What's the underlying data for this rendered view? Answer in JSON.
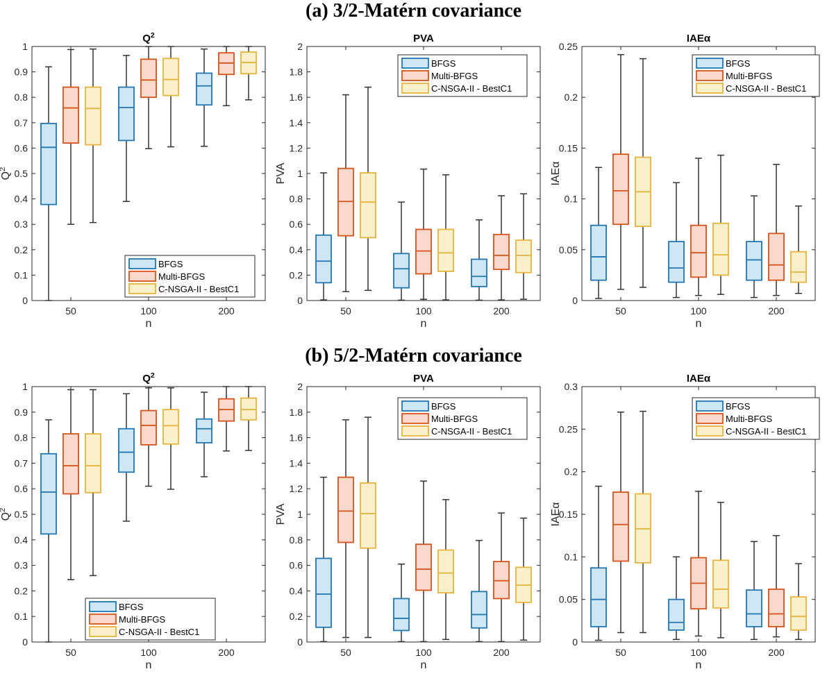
{
  "sections": [
    {
      "title": "(a) 3/2-Matérn covariance"
    },
    {
      "title": "(b) 5/2-Matérn covariance"
    }
  ],
  "colors": {
    "BFGS": {
      "stroke": "#1f77b4",
      "fill": "#cfe6f5"
    },
    "Multi-BFGS": {
      "stroke": "#d95319",
      "fill": "#f9d9cc"
    },
    "C-NSGA-II - BestC1": {
      "stroke": "#e8b43a",
      "fill": "#fbf0cc"
    }
  },
  "chart_data": [
    {
      "type": "box",
      "panel": "a-q2",
      "section": 0,
      "column": 0,
      "title": "Q",
      "title_sup": "2",
      "xlabel": "n",
      "ylabel": "Q",
      "ylabel_sup": "2",
      "ylim": [
        0,
        1
      ],
      "yticks": [
        0,
        0.1,
        0.2,
        0.3,
        0.4,
        0.5,
        0.6,
        0.7,
        0.8,
        0.9,
        1
      ],
      "ytick_labels": [
        "0",
        "0.1",
        "0.2",
        "0.3",
        "0.4",
        "0.5",
        "0.6",
        "0.7",
        "0.8",
        "0.9",
        "1"
      ],
      "categories": [
        "50",
        "100",
        "200"
      ],
      "legend_position": "bottom-right",
      "series": [
        {
          "name": "BFGS",
          "boxes": [
            [
              0,
              0.378,
              0.603,
              0.697,
              0.92
            ],
            [
              0.39,
              0.63,
              0.76,
              0.84,
              0.965
            ],
            [
              0.607,
              0.77,
              0.845,
              0.895,
              0.99
            ]
          ]
        },
        {
          "name": "Multi-BFGS",
          "boxes": [
            [
              0.3,
              0.62,
              0.758,
              0.84,
              0.988
            ],
            [
              0.598,
              0.8,
              0.868,
              0.95,
              1.0
            ],
            [
              0.767,
              0.89,
              0.935,
              0.975,
              1.0
            ]
          ]
        },
        {
          "name": "C-NSGA-II - BestC1",
          "boxes": [
            [
              0.307,
              0.613,
              0.756,
              0.84,
              0.99
            ],
            [
              0.605,
              0.807,
              0.87,
              0.953,
              1.0
            ],
            [
              0.79,
              0.893,
              0.937,
              0.978,
              1.0
            ]
          ]
        }
      ]
    },
    {
      "type": "box",
      "panel": "a-pva",
      "section": 0,
      "column": 1,
      "title": "PVA",
      "xlabel": "n",
      "ylabel": "PVA",
      "ylim": [
        0,
        2
      ],
      "yticks": [
        0,
        0.2,
        0.4,
        0.6,
        0.8,
        1,
        1.2,
        1.4,
        1.6,
        1.8,
        2
      ],
      "ytick_labels": [
        "0",
        "0.2",
        "0.4",
        "0.6",
        "0.8",
        "1",
        "1.2",
        "1.4",
        "1.6",
        "1.8",
        "2"
      ],
      "categories": [
        "50",
        "100",
        "200"
      ],
      "legend_position": "top-right",
      "series": [
        {
          "name": "BFGS",
          "boxes": [
            [
              0.005,
              0.14,
              0.31,
              0.515,
              1.005
            ],
            [
              0.003,
              0.1,
              0.25,
              0.37,
              0.775
            ],
            [
              0.003,
              0.11,
              0.19,
              0.325,
              0.635
            ]
          ]
        },
        {
          "name": "Multi-BFGS",
          "boxes": [
            [
              0.07,
              0.51,
              0.78,
              1.04,
              1.62
            ],
            [
              0.01,
              0.21,
              0.39,
              0.56,
              1.035
            ],
            [
              0.005,
              0.245,
              0.355,
              0.52,
              0.825
            ]
          ]
        },
        {
          "name": "C-NSGA-II - BestC1",
          "boxes": [
            [
              0.08,
              0.495,
              0.775,
              1.005,
              1.68
            ],
            [
              0.005,
              0.23,
              0.375,
              0.56,
              0.99
            ],
            [
              0.01,
              0.22,
              0.355,
              0.475,
              0.84
            ]
          ]
        }
      ]
    },
    {
      "type": "box",
      "panel": "a-iae",
      "section": 0,
      "column": 2,
      "title": "IAEα",
      "xlabel": "n",
      "ylabel": "IAEα",
      "ylim": [
        0,
        0.25
      ],
      "yticks": [
        0,
        0.05,
        0.1,
        0.15,
        0.2,
        0.25
      ],
      "ytick_labels": [
        "0",
        "0.05",
        "0.1",
        "0.15",
        "0.2",
        "0.25"
      ],
      "categories": [
        "50",
        "100",
        "200"
      ],
      "legend_position": "top-right",
      "series": [
        {
          "name": "BFGS",
          "boxes": [
            [
              0.002,
              0.02,
              0.043,
              0.074,
              0.131
            ],
            [
              0.003,
              0.018,
              0.032,
              0.058,
              0.116
            ],
            [
              0.003,
              0.02,
              0.04,
              0.058,
              0.103
            ]
          ]
        },
        {
          "name": "Multi-BFGS",
          "boxes": [
            [
              0.011,
              0.075,
              0.108,
              0.144,
              0.242
            ],
            [
              0.005,
              0.023,
              0.047,
              0.074,
              0.14
            ],
            [
              0.005,
              0.02,
              0.035,
              0.066,
              0.134
            ]
          ]
        },
        {
          "name": "C-NSGA-II - BestC1",
          "boxes": [
            [
              0.013,
              0.073,
              0.107,
              0.141,
              0.238
            ],
            [
              0.006,
              0.025,
              0.045,
              0.076,
              0.143
            ],
            [
              0.007,
              0.018,
              0.028,
              0.048,
              0.093
            ]
          ]
        }
      ]
    },
    {
      "type": "box",
      "panel": "b-q2",
      "section": 1,
      "column": 0,
      "title": "Q",
      "title_sup": "2",
      "xlabel": "n",
      "ylabel": "Q",
      "ylabel_sup": "2",
      "ylim": [
        0,
        1
      ],
      "yticks": [
        0,
        0.1,
        0.2,
        0.3,
        0.4,
        0.5,
        0.6,
        0.7,
        0.8,
        0.9,
        1
      ],
      "ytick_labels": [
        "0",
        "0.1",
        "0.2",
        "0.3",
        "0.4",
        "0.5",
        "0.6",
        "0.7",
        "0.8",
        "0.9",
        "1"
      ],
      "categories": [
        "50",
        "100",
        "200"
      ],
      "legend_position": "bottom-left",
      "series": [
        {
          "name": "BFGS",
          "boxes": [
            [
              0,
              0.423,
              0.587,
              0.737,
              0.87
            ],
            [
              0.473,
              0.665,
              0.743,
              0.835,
              0.972
            ],
            [
              0.647,
              0.78,
              0.835,
              0.873,
              0.978
            ]
          ]
        },
        {
          "name": "Multi-BFGS",
          "boxes": [
            [
              0.244,
              0.58,
              0.69,
              0.815,
              0.988
            ],
            [
              0.61,
              0.772,
              0.848,
              0.906,
              0.995
            ],
            [
              0.748,
              0.865,
              0.91,
              0.952,
              1.0
            ]
          ]
        },
        {
          "name": "C-NSGA-II - BestC1",
          "boxes": [
            [
              0.26,
              0.585,
              0.69,
              0.815,
              0.988
            ],
            [
              0.598,
              0.775,
              0.847,
              0.91,
              0.995
            ],
            [
              0.75,
              0.87,
              0.91,
              0.955,
              1.0
            ]
          ]
        }
      ]
    },
    {
      "type": "box",
      "panel": "b-pva",
      "section": 1,
      "column": 1,
      "title": "PVA",
      "xlabel": "n",
      "ylabel": "PVA",
      "ylim": [
        0,
        2
      ],
      "yticks": [
        0,
        0.2,
        0.4,
        0.6,
        0.8,
        1,
        1.2,
        1.4,
        1.6,
        1.8,
        2
      ],
      "ytick_labels": [
        "0",
        "0.2",
        "0.4",
        "0.6",
        "0.8",
        "1",
        "1.2",
        "1.4",
        "1.6",
        "1.8",
        "2"
      ],
      "categories": [
        "50",
        "100",
        "200"
      ],
      "legend_position": "top-right",
      "series": [
        {
          "name": "BFGS",
          "boxes": [
            [
              0.003,
              0.115,
              0.375,
              0.655,
              1.29
            ],
            [
              0.003,
              0.09,
              0.185,
              0.34,
              0.61
            ],
            [
              0.003,
              0.11,
              0.215,
              0.395,
              0.795
            ]
          ]
        },
        {
          "name": "Multi-BFGS",
          "boxes": [
            [
              0.035,
              0.78,
              1.025,
              1.29,
              1.74
            ],
            [
              0.003,
              0.405,
              0.57,
              0.765,
              1.26
            ],
            [
              0.003,
              0.34,
              0.48,
              0.63,
              1.01
            ]
          ]
        },
        {
          "name": "C-NSGA-II - BestC1",
          "boxes": [
            [
              0.035,
              0.735,
              1.005,
              1.245,
              1.76
            ],
            [
              0.02,
              0.385,
              0.54,
              0.72,
              1.115
            ],
            [
              0.015,
              0.31,
              0.445,
              0.585,
              0.97
            ]
          ]
        }
      ]
    },
    {
      "type": "box",
      "panel": "b-iae",
      "section": 1,
      "column": 2,
      "title": "IAEα",
      "xlabel": "n",
      "ylabel": "IAEα",
      "ylim": [
        0,
        0.3
      ],
      "yticks": [
        0,
        0.05,
        0.1,
        0.15,
        0.2,
        0.25,
        0.3
      ],
      "ytick_labels": [
        "0",
        "0.05",
        "0.1",
        "0.15",
        "0.2",
        "0.25",
        "0.3"
      ],
      "categories": [
        "50",
        "100",
        "200"
      ],
      "legend_position": "top-right",
      "series": [
        {
          "name": "BFGS",
          "boxes": [
            [
              0.002,
              0.018,
              0.05,
              0.087,
              0.183
            ],
            [
              0.003,
              0.014,
              0.023,
              0.05,
              0.1
            ],
            [
              0.003,
              0.018,
              0.033,
              0.061,
              0.118
            ]
          ]
        },
        {
          "name": "Multi-BFGS",
          "boxes": [
            [
              0.011,
              0.095,
              0.138,
              0.176,
              0.27
            ],
            [
              0.007,
              0.039,
              0.069,
              0.099,
              0.177
            ],
            [
              0.006,
              0.018,
              0.033,
              0.062,
              0.125
            ]
          ]
        },
        {
          "name": "C-NSGA-II - BestC1",
          "boxes": [
            [
              0.011,
              0.093,
              0.133,
              0.174,
              0.271
            ],
            [
              0.005,
              0.04,
              0.062,
              0.096,
              0.164
            ],
            [
              0.003,
              0.014,
              0.03,
              0.053,
              0.092
            ]
          ]
        }
      ]
    }
  ]
}
